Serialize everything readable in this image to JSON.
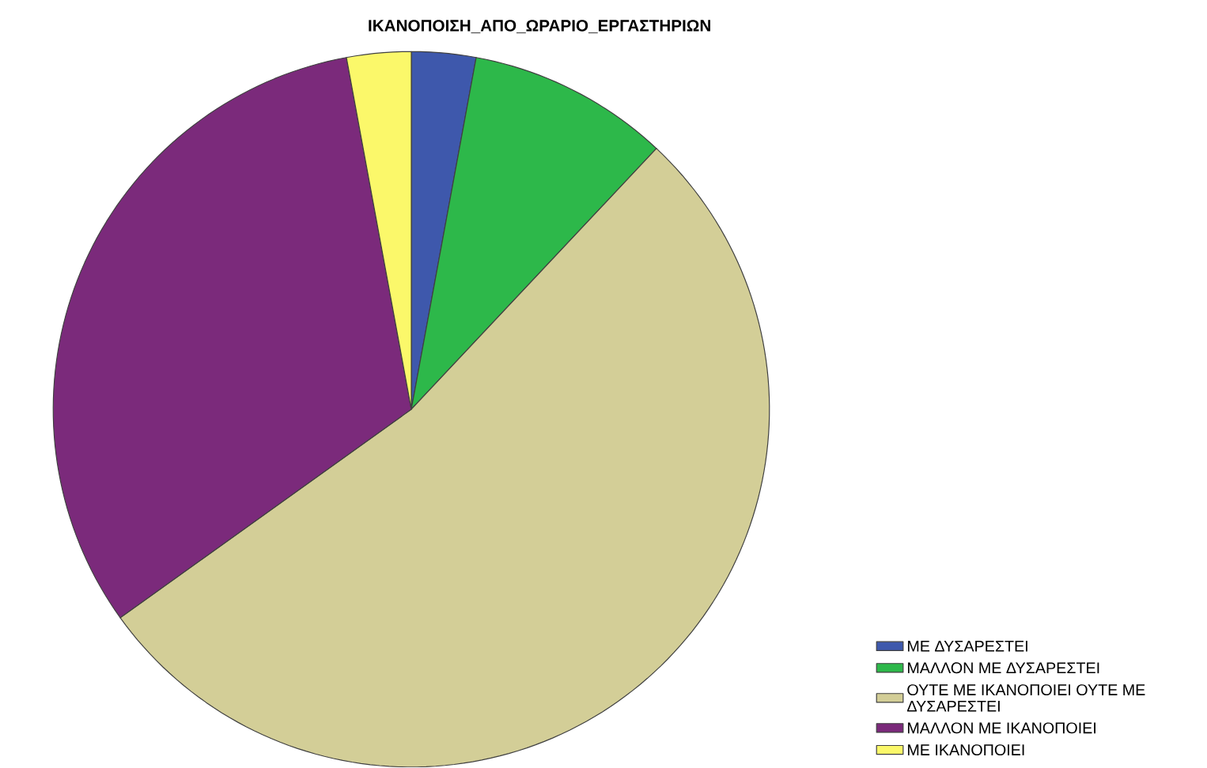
{
  "chart_data": {
    "type": "pie",
    "title": "ΙΚΑΝΟΠΟΙΣΗ_ΑΠΟ_ΩΡΑΡΙΟ_ΕΡΓΑΣΤΗΡΙΩΝ",
    "categories": [
      "ΜΕ ΔΥΣΑΡΕΣΤΕΙ",
      "ΜΑΛΛΟΝ ΜΕ ΔΥΣΑΡΕΣΤΕΙ",
      "ΟΥΤΕ ΜΕ ΙΚΑΝΟΠΟΙΕΙ ΟΥΤΕ ΜΕ ΔΥΣΑΡΕΣΤΕΙ",
      "ΜΑΛΛΟΝ ΜΕ ΙΚΑΝΟΠΟΙΕΙ",
      "ΜΕ ΙΚΑΝΟΠΟΙΕΙ"
    ],
    "values": [
      2.9,
      9.1,
      53.1,
      32.0,
      2.9
    ],
    "colors": [
      "#3e58ac",
      "#2db84a",
      "#d3ce97",
      "#7b2a7b",
      "#fbf86a"
    ],
    "legend": "bottom right"
  }
}
